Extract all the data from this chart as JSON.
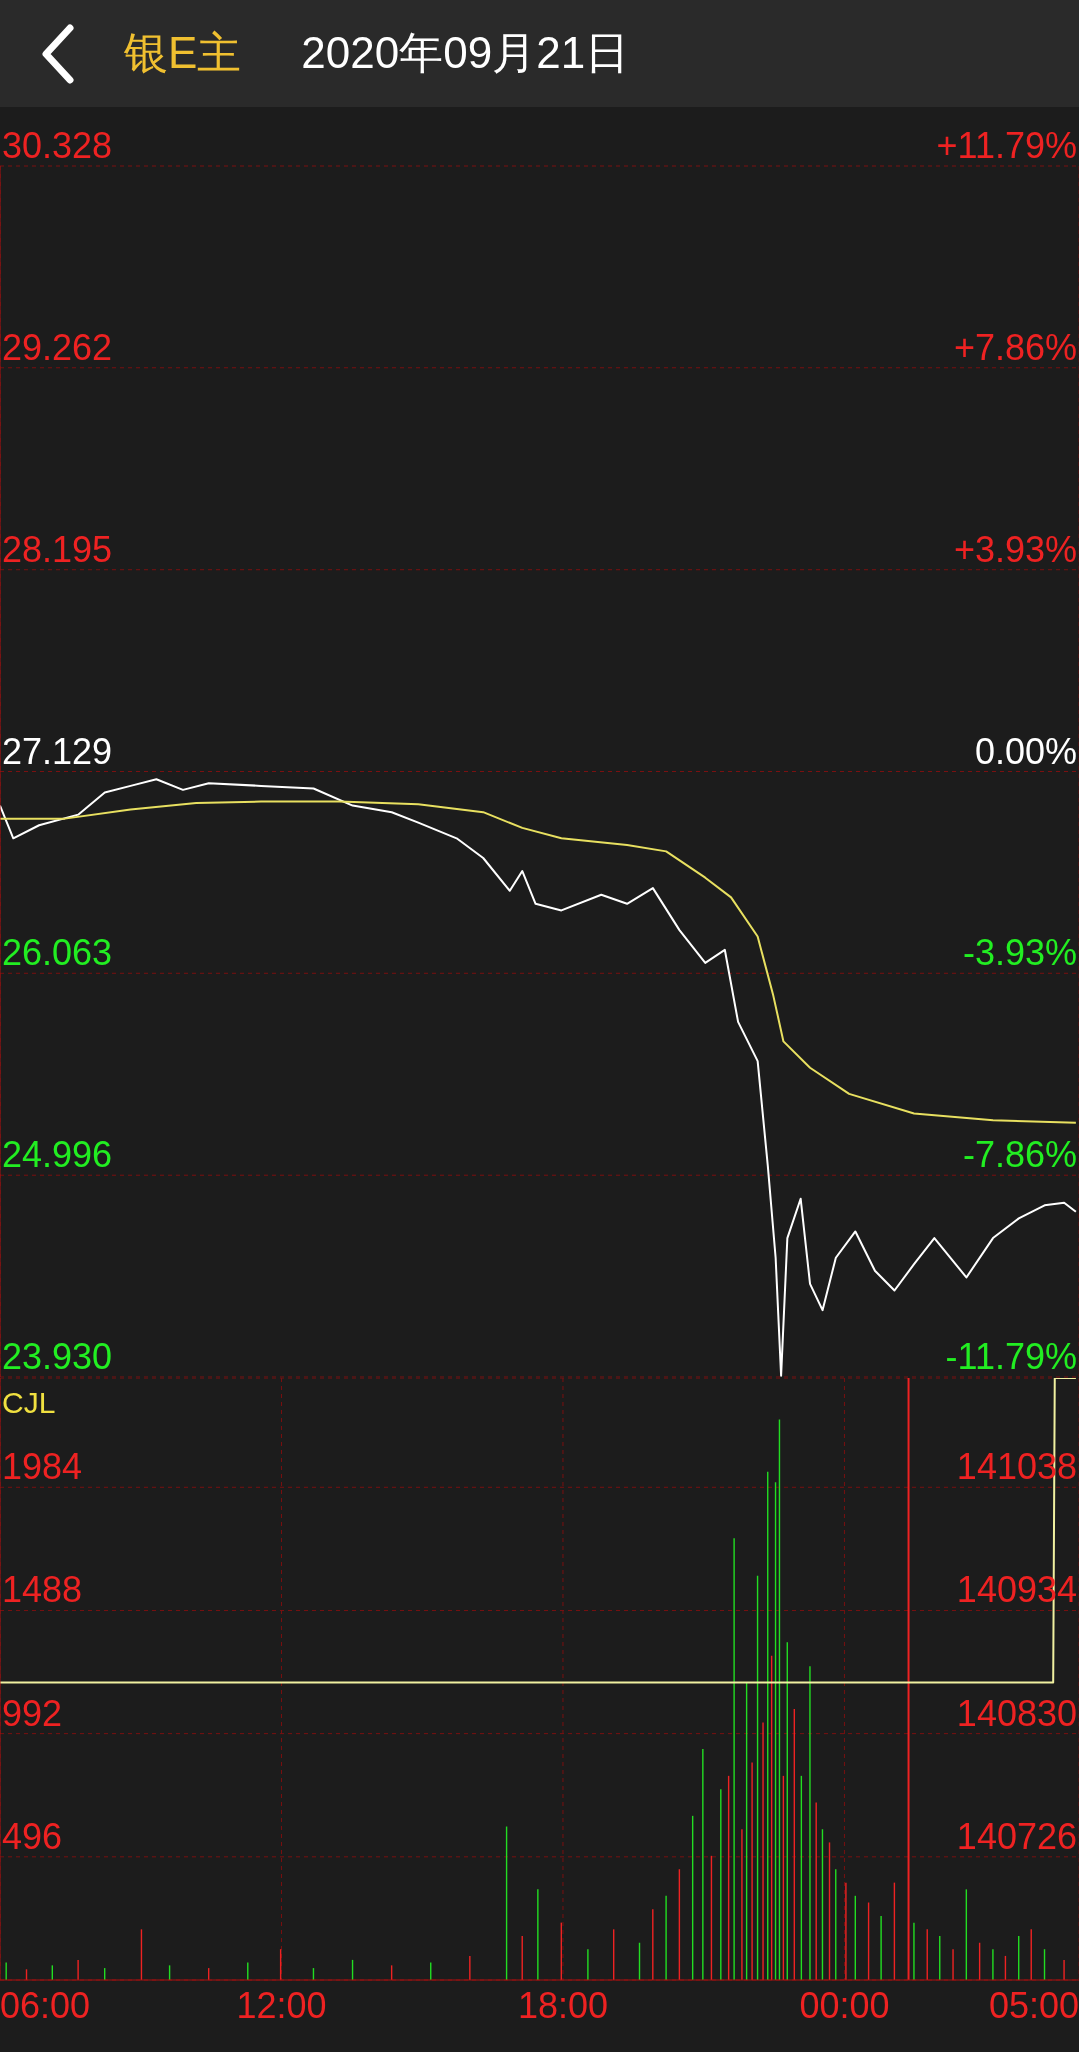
{
  "chart_data": [
    {
      "type": "line",
      "title": "银E主",
      "subtitle": "2020年09月21日",
      "xlim": [
        "2020-09-21T06:00",
        "2020-09-22T05:00"
      ],
      "xticks": [
        {
          "value": "2020-09-21T06:00",
          "label": null
        },
        {
          "value": "2020-09-21T12:00",
          "label": null
        },
        {
          "value": "2020-09-21T18:00",
          "label": null
        },
        {
          "value": "2020-09-22T00:00",
          "label": null
        },
        {
          "value": "2020-09-22T05:00",
          "label": null
        }
      ],
      "tick_labels": "y",
      "ylim": [
        23.93,
        30.328
      ],
      "yticks": [
        {
          "value": 23.93,
          "label": "23.930"
        },
        24.996,
        26.063,
        27.129,
        28.195,
        29.262,
        30.328
      ],
      "y2lim": [
        -11.79,
        11.79
      ],
      "y2ticks": [
        {
          "value": -11.79,
          "label": "-11.79%"
        },
        {
          "value": -7.86,
          "label": "-7.86%"
        },
        {
          "value": -3.93,
          "label": "-3.93%"
        },
        {
          "value": 0,
          "label": "0.00%"
        },
        {
          "value": 3.93,
          "label": "+3.93%"
        },
        {
          "value": 7.86,
          "label": "+7.86%"
        },
        {
          "value": 11.79,
          "label": "+11.79%"
        }
      ],
      "grid": true,
      "series": [
        {
          "color": "#ffffff",
          "x": [
            "2020-09-21T06:00",
            "2020-09-21T06:17",
            "2020-09-21T06:50",
            "2020-09-21T07:40",
            "2020-09-21T08:14",
            "2020-09-21T08:47",
            "2020-09-21T09:20",
            "2020-09-21T09:54",
            "2020-09-21T10:27",
            "2020-09-21T11:34",
            "2020-09-21T12:41",
            "2020-09-21T13:31",
            "2020-09-21T14:21",
            "2020-09-21T14:55",
            "2020-09-21T15:44",
            "2020-09-21T16:18",
            "2020-09-21T16:52",
            "2020-09-21T17:08",
            "2020-09-21T17:25",
            "2020-09-21T17:58",
            "2020-09-21T18:49",
            "2020-09-21T19:22",
            "2020-09-21T19:55",
            "2020-09-21T20:29",
            "2020-09-21T21:02",
            "2020-09-21T21:27",
            "2020-09-21T21:44",
            "2020-09-21T22:09",
            "2020-09-21T22:22",
            "2020-09-21T22:32",
            "2020-09-21T22:39",
            "2020-09-21T22:47",
            "2020-09-21T23:04",
            "2020-09-21T23:16",
            "2020-09-21T23:32",
            "2020-09-21T23:49",
            "2020-09-22T00:14",
            "2020-09-22T00:39",
            "2020-09-22T01:04",
            "2020-09-22T01:29",
            "2020-09-22T01:55",
            "2020-09-22T02:36",
            "2020-09-22T03:10",
            "2020-09-22T03:43",
            "2020-09-22T04:16",
            "2020-09-22T04:41",
            "2020-09-22T04:56"
          ],
          "values": [
            26.949,
            26.776,
            26.845,
            26.901,
            27.018,
            27.053,
            27.088,
            27.032,
            27.067,
            27.053,
            27.039,
            26.949,
            26.914,
            26.859,
            26.776,
            26.672,
            26.499,
            26.603,
            26.43,
            26.395,
            26.478,
            26.43,
            26.513,
            26.291,
            26.118,
            26.187,
            25.806,
            25.599,
            25.045,
            24.56,
            23.937,
            24.664,
            24.872,
            24.422,
            24.283,
            24.56,
            24.699,
            24.491,
            24.387,
            24.526,
            24.664,
            24.456,
            24.664,
            24.768,
            24.837,
            24.851,
            24.803
          ]
        },
        {
          "color": "#e8e060",
          "x": [
            "2020-09-21T06:00",
            "2020-09-21T07:23",
            "2020-09-21T08:47",
            "2020-09-21T10:11",
            "2020-09-21T11:34",
            "2020-09-21T13:14",
            "2020-09-21T14:55",
            "2020-09-21T16:18",
            "2020-09-21T17:08",
            "2020-09-21T17:58",
            "2020-09-21T19:22",
            "2020-09-21T20:12",
            "2020-09-21T21:02",
            "2020-09-21T21:35",
            "2020-09-21T22:09",
            "2020-09-21T22:29",
            "2020-09-21T22:42",
            "2020-09-21T23:16",
            "2020-09-22T00:06",
            "2020-09-22T01:29",
            "2020-09-22T03:10",
            "2020-09-22T04:56"
          ],
          "values": [
            26.88,
            26.88,
            26.928,
            26.963,
            26.97,
            26.97,
            26.956,
            26.914,
            26.831,
            26.776,
            26.741,
            26.707,
            26.568,
            26.464,
            26.257,
            25.945,
            25.703,
            25.564,
            25.426,
            25.322,
            25.287,
            25.273
          ]
        }
      ]
    },
    {
      "type": "bar",
      "ylabel": "CJL",
      "xlim": [
        "2020-09-21T06:00",
        "2020-09-22T05:00"
      ],
      "xticks": [
        {
          "value": "2020-09-21T06:00",
          "label": "06:00"
        },
        {
          "value": "2020-09-21T12:00",
          "label": "12:00"
        },
        {
          "value": "2020-09-21T18:00",
          "label": "18:00"
        },
        {
          "value": "2020-09-22T00:00",
          "label": "00:00"
        },
        {
          "value": "2020-09-22T05:00",
          "label": "05:00"
        }
      ],
      "ylim": [
        0,
        2424
      ],
      "yticks": [
        496,
        992,
        1488,
        1984
      ],
      "y2lim": [
        140622,
        141130
      ],
      "y2ticks": [
        140726,
        140830,
        140934,
        141038
      ],
      "grid": true,
      "x": [
        "2020-09-21T06:08",
        "2020-09-21T06:34",
        "2020-09-21T07:07",
        "2020-09-21T07:40",
        "2020-09-21T08:14",
        "2020-09-21T09:01",
        "2020-09-21T09:37",
        "2020-09-21T10:27",
        "2020-09-21T11:17",
        "2020-09-21T11:59",
        "2020-09-21T12:41",
        "2020-09-21T13:31",
        "2020-09-21T14:21",
        "2020-09-21T15:11",
        "2020-09-21T16:01",
        "2020-09-21T16:48",
        "2020-09-21T17:08",
        "2020-09-21T17:28",
        "2020-09-21T17:58",
        "2020-09-21T18:32",
        "2020-09-21T19:05",
        "2020-09-21T19:38",
        "2020-09-21T19:55",
        "2020-09-21T20:12",
        "2020-09-21T20:29",
        "2020-09-21T20:46",
        "2020-09-21T20:59",
        "2020-09-21T21:10",
        "2020-09-21T21:22",
        "2020-09-21T21:32",
        "2020-09-21T21:39",
        "2020-09-21T21:49",
        "2020-09-21T21:55",
        "2020-09-21T22:02",
        "2020-09-21T22:09",
        "2020-09-21T22:16",
        "2020-09-21T22:22",
        "2020-09-21T22:27",
        "2020-09-21T22:32",
        "2020-09-21T22:37",
        "2020-09-21T22:42",
        "2020-09-21T22:47",
        "2020-09-21T22:56",
        "2020-09-21T23:05",
        "2020-09-21T23:16",
        "2020-09-21T23:24",
        "2020-09-21T23:32",
        "2020-09-21T23:41",
        "2020-09-21T23:49",
        "2020-09-22T00:02",
        "2020-09-22T00:14",
        "2020-09-22T00:31",
        "2020-09-22T00:47",
        "2020-09-22T01:04",
        "2020-09-22T01:29",
        "2020-09-22T01:46",
        "2020-09-22T02:02",
        "2020-09-22T02:19",
        "2020-09-22T02:36",
        "2020-09-22T02:53",
        "2020-09-22T03:10",
        "2020-09-22T03:26",
        "2020-09-22T03:43",
        "2020-09-22T03:59",
        "2020-09-22T04:16",
        "2020-09-22T04:41"
      ],
      "ref_lines": [
        {
          "axis": "x",
          "value": "2020-09-22T01:22",
          "color": "#ee2222"
        }
      ],
      "series": [
        {
          "values": [
            70,
            43,
            59,
            81,
            48,
            204,
            59,
            48,
            70,
            124,
            48,
            81,
            59,
            70,
            97,
            618,
            177,
            365,
            231,
            124,
            204,
            150,
            285,
            339,
            446,
            661,
            930,
            500,
            768,
            822,
            1779,
            607,
            1198,
            876,
            1628,
            1037,
            2047,
            1306,
            2004,
            2257,
            822,
            1360,
            1091,
            822,
            1263,
            715,
            607,
            554,
            446,
            392,
            339,
            312,
            258,
            392,
            231,
            204,
            177,
            124,
            365,
            150,
            124,
            97,
            177,
            204,
            124,
            81
          ],
          "colors": [
            "#22dd22",
            "#ee2222",
            "#22dd22",
            "#ee2222",
            "#22dd22",
            "#ee2222",
            "#22dd22",
            "#ee2222",
            "#22dd22",
            "#ee2222",
            "#22dd22",
            "#22dd22",
            "#ee2222",
            "#22dd22",
            "#ee2222",
            "#22dd22",
            "#ee2222",
            "#22dd22",
            "#ee2222",
            "#22dd22",
            "#ee2222",
            "#22dd22",
            "#ee2222",
            "#22dd22",
            "#ee2222",
            "#22dd22",
            "#22dd22",
            "#ee2222",
            "#22dd22",
            "#ee2222",
            "#22dd22",
            "#ee2222",
            "#22dd22",
            "#ee2222",
            "#22dd22",
            "#ee2222",
            "#22dd22",
            "#ee2222",
            "#22dd22",
            "#22dd22",
            "#ee2222",
            "#22dd22",
            "#ee2222",
            "#22dd22",
            "#22dd22",
            "#ee2222",
            "#22dd22",
            "#ee2222",
            "#22dd22",
            "#ee2222",
            "#22dd22",
            "#ee2222",
            "#22dd22",
            "#ee2222",
            "#22dd22",
            "#ee2222",
            "#22dd22",
            "#ee2222",
            "#22dd22",
            "#ee2222",
            "#22dd22",
            "#ee2222",
            "#22dd22",
            "#ee2222",
            "#22dd22",
            "#ee2222"
          ]
        },
        {
          "type": "line",
          "axis": "y2",
          "color": "#f0f0a0",
          "x": [
            "2020-09-21T06:00",
            "2020-09-22T04:27",
            "2020-09-22T04:29",
            "2020-09-22T04:56"
          ],
          "values": [
            140873,
            140873,
            141130,
            141130
          ]
        }
      ]
    }
  ]
}
